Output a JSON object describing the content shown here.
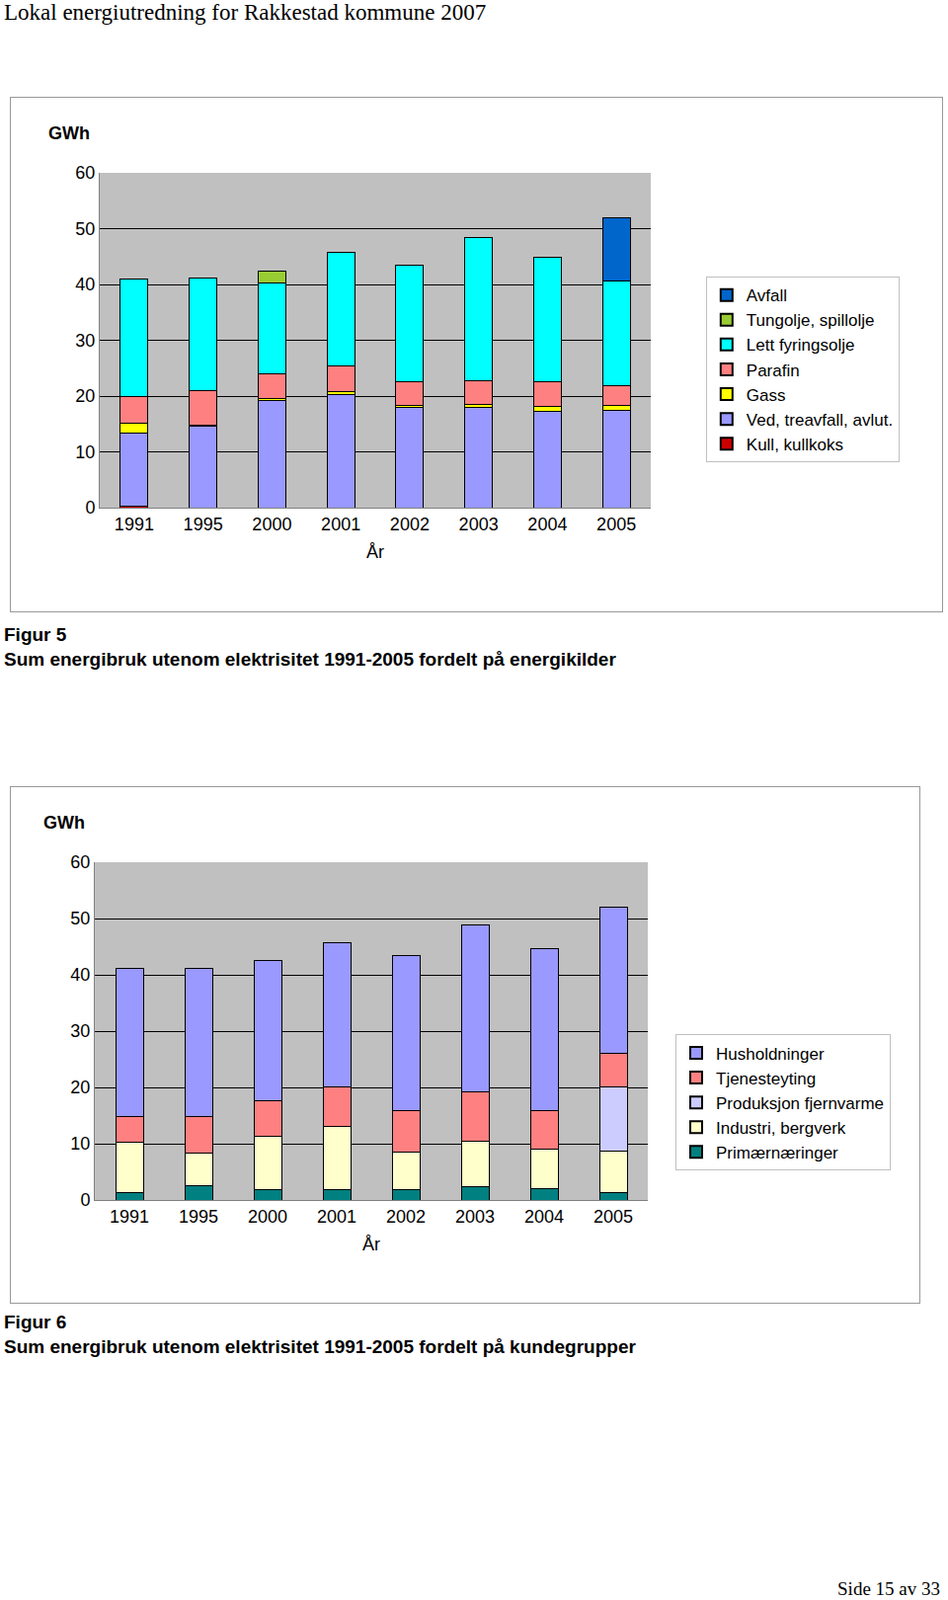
{
  "page": {
    "header": "Lokal energiutredning for Rakkestad kommune 2007",
    "footer": "Side 15 av 33"
  },
  "chart_data": [
    {
      "type": "bar",
      "stacked": true,
      "title": "Figur 5",
      "subtitle": "Sum energibruk utenom elektrisitet 1991-2005 fordelt på energikilder",
      "y_label": "GWh",
      "x_label": "År",
      "categories": [
        "1991",
        "1995",
        "2000",
        "2001",
        "2002",
        "2003",
        "2004",
        "2005"
      ],
      "ylim": [
        0,
        60
      ],
      "yticks": [
        0,
        10,
        20,
        30,
        40,
        50,
        60
      ],
      "grid": true,
      "legend": "right",
      "series": [
        {
          "name": "Kull, kullkoks",
          "color": "#cc0000",
          "values": [
            0.3,
            0,
            0,
            0,
            0,
            0,
            0,
            0
          ]
        },
        {
          "name": "Ved, treavfall, avlut.",
          "color": "#9999ff",
          "values": [
            13.1,
            14.6,
            19.2,
            20.3,
            17.9,
            17.9,
            17.3,
            17.5
          ]
        },
        {
          "name": "Gass",
          "color": "#ffff00",
          "values": [
            1.8,
            0.2,
            0.3,
            0.5,
            0.5,
            0.6,
            0.8,
            0.9
          ]
        },
        {
          "name": "Parafin",
          "color": "#ff8080",
          "values": [
            4.7,
            6.2,
            4.5,
            4.6,
            4.1,
            4.2,
            4.5,
            3.5
          ]
        },
        {
          "name": "Lett fyringsolje",
          "color": "#00ffff",
          "values": [
            21.0,
            20.1,
            16.2,
            20.4,
            21.0,
            25.7,
            22.3,
            18.8
          ]
        },
        {
          "name": "Tungolje, spillolje",
          "color": "#99cc33",
          "values": [
            0,
            0,
            2.2,
            0,
            0,
            0,
            0,
            0
          ]
        },
        {
          "name": "Avfall",
          "color": "#0066cc",
          "values": [
            0,
            0,
            0,
            0,
            0,
            0,
            0,
            11.3
          ]
        }
      ]
    },
    {
      "type": "bar",
      "stacked": true,
      "title": "Figur 6",
      "subtitle": "Sum energibruk utenom elektrisitet 1991-2005 fordelt på kundegrupper",
      "y_label": "GWh",
      "x_label": "År",
      "categories": [
        "1991",
        "1995",
        "2000",
        "2001",
        "2002",
        "2003",
        "2004",
        "2005"
      ],
      "ylim": [
        0,
        60
      ],
      "yticks": [
        0,
        10,
        20,
        30,
        40,
        50,
        60
      ],
      "grid": true,
      "legend": "right",
      "series": [
        {
          "name": "Primærnæringer",
          "color": "#008080",
          "values": [
            1.4,
            2.5,
            1.8,
            1.8,
            1.8,
            2.4,
            2.0,
            1.4
          ]
        },
        {
          "name": "Industri, bergverk",
          "color": "#ffffcc",
          "values": [
            8.9,
            5.8,
            9.6,
            11.2,
            6.7,
            8.1,
            7.1,
            7.3
          ]
        },
        {
          "name": "Produksjon fjernvarme",
          "color": "#ccccff",
          "values": [
            0,
            0,
            0,
            0,
            0,
            0,
            0,
            11.4
          ]
        },
        {
          "name": "Tjenesteyting",
          "color": "#ff8080",
          "values": [
            4.6,
            6.6,
            6.2,
            7.1,
            7.3,
            8.7,
            6.8,
            6.0
          ]
        },
        {
          "name": "Husholdninger",
          "color": "#9999ff",
          "values": [
            26.2,
            26.2,
            25.0,
            25.6,
            27.7,
            29.7,
            28.7,
            25.9
          ]
        }
      ]
    }
  ]
}
